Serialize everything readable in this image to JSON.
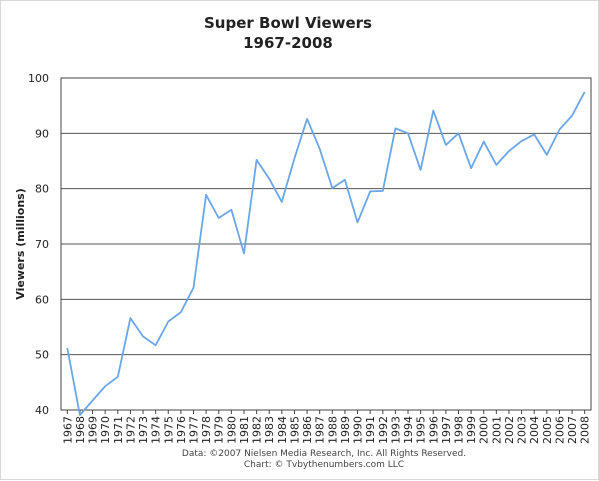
{
  "chart_data": {
    "type": "line",
    "title": "Super Bowl Viewers",
    "subtitle": "1967-2008",
    "xlabel": "",
    "ylabel": "Viewers (millions)",
    "ylim": [
      40,
      100
    ],
    "yticks": [
      40,
      50,
      60,
      70,
      80,
      90,
      100
    ],
    "grid": true,
    "line_color": "#6aa6e8",
    "x": [
      "1967",
      "1968",
      "1969",
      "1970",
      "1971",
      "1972",
      "1973",
      "1974",
      "1975",
      "1976",
      "1977",
      "1978",
      "1979",
      "1980",
      "1981",
      "1982",
      "1983",
      "1984",
      "1985",
      "1986",
      "1987",
      "1988",
      "1989",
      "1990",
      "1991",
      "1992",
      "1993",
      "1994",
      "1995",
      "1996",
      "1997",
      "1998",
      "1999",
      "2000",
      "2001",
      "2002",
      "2003",
      "2004",
      "2005",
      "2006",
      "2007",
      "2008"
    ],
    "series": [
      {
        "values": [
          51.2,
          39.1,
          41.7,
          44.3,
          46.0,
          56.6,
          53.3,
          51.7,
          56.0,
          57.7,
          62.1,
          78.9,
          74.7,
          76.2,
          68.3,
          85.2,
          81.8,
          77.6,
          85.5,
          92.6,
          87.2,
          80.1,
          81.6,
          73.9,
          79.5,
          79.6,
          90.9,
          90.0,
          83.4,
          94.1,
          87.9,
          90.0,
          83.7,
          88.5,
          84.3,
          86.8,
          88.6,
          89.8,
          86.1,
          90.7,
          93.2,
          97.5
        ]
      }
    ],
    "footer": [
      "Data: ©2007 Nielsen Media Research, Inc. All Rights Reserved.",
      "Chart: © Tvbythenumbers.com LLC"
    ]
  }
}
